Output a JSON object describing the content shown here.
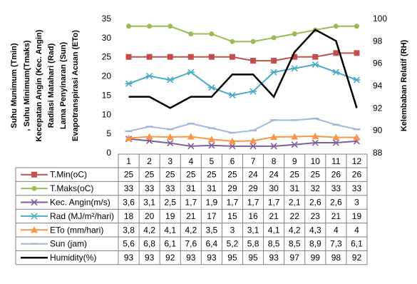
{
  "chart_data": {
    "type": "line",
    "categories": [
      "1",
      "2",
      "3",
      "4",
      "5",
      "6",
      "7",
      "8",
      "9",
      "10",
      "11",
      "12"
    ],
    "y_left": {
      "label_lines": [
        "Suhu Munimum (Tmin)",
        ", Suhu Minimum(Tmaks)",
        "Kecepatan Angin (Kec. Angin)",
        "Radiasi Matahari (Rad)",
        "Lama Penyinaran (Sun)",
        "Evapotranspirasi Acuan (ETo)"
      ],
      "ylim": [
        0,
        35
      ],
      "ticks": [
        0,
        5,
        10,
        15,
        20,
        25,
        30,
        35
      ]
    },
    "y_right": {
      "label": "Kelembaban Relatif (RH)",
      "ylim": [
        88,
        100
      ],
      "ticks": [
        88,
        90,
        92,
        94,
        96,
        98,
        100
      ]
    },
    "series": [
      {
        "name": "T.Min(oC)",
        "color": "#c0504d",
        "marker": "square",
        "axis": "left",
        "values": [
          25,
          25,
          25,
          25,
          25,
          25,
          24,
          24,
          25,
          25,
          26,
          26
        ],
        "labels": [
          "25",
          "25",
          "25",
          "25",
          "25",
          "25",
          "24",
          "24",
          "25",
          "25",
          "26",
          "26"
        ]
      },
      {
        "name": "T.Maks(oC)",
        "color": "#9bbb59",
        "marker": "circle",
        "axis": "left",
        "values": [
          33,
          33,
          33,
          31,
          31,
          29,
          29,
          30,
          31,
          32,
          33,
          33
        ],
        "labels": [
          "33",
          "33",
          "33",
          "31",
          "31",
          "29",
          "29",
          "30",
          "31",
          "32",
          "33",
          "33"
        ]
      },
      {
        "name": "Kec. Angin(m/s)",
        "color": "#7f5f9f",
        "marker": "x",
        "axis": "left",
        "values": [
          3.6,
          3.1,
          2.5,
          1.7,
          1.9,
          1.7,
          1.7,
          1.7,
          2.1,
          2.6,
          2.6,
          3
        ],
        "labels": [
          "3,6",
          "3,1",
          "2,5",
          "1,7",
          "1,9",
          "1,7",
          "1,7",
          "1,7",
          "2,1",
          "2,6",
          "2,6",
          "3"
        ]
      },
      {
        "name": "Rad (MJ/m²/hari)",
        "color": "#4bacc6",
        "marker": "star",
        "axis": "left",
        "values": [
          18,
          20,
          19,
          21,
          17,
          15,
          16,
          21,
          22,
          23,
          21,
          19
        ],
        "labels": [
          "18",
          "20",
          "19",
          "21",
          "17",
          "15",
          "16",
          "21",
          "22",
          "23",
          "21",
          "19"
        ]
      },
      {
        "name": "ETo (mm/hari)",
        "color": "#f79646",
        "marker": "triangle",
        "axis": "left",
        "values": [
          3.8,
          4.2,
          4.1,
          4.2,
          3.5,
          3,
          3.1,
          4.1,
          4.2,
          4.3,
          4,
          4
        ],
        "labels": [
          "3,8",
          "4,2",
          "4,1",
          "4,2",
          "3,5",
          "3",
          "3,1",
          "4,1",
          "4,2",
          "4,3",
          "4",
          "4"
        ]
      },
      {
        "name": "Sun (jam)",
        "color": "#a6b6dc",
        "marker": "dash",
        "axis": "left",
        "values": [
          5.6,
          6.8,
          6.1,
          7.6,
          6.4,
          5.2,
          5.8,
          8.5,
          8.5,
          8.9,
          7.3,
          6.1
        ],
        "labels": [
          "5,6",
          "6,8",
          "6,1",
          "7,6",
          "6,4",
          "5,2",
          "5,8",
          "8,5",
          "8,5",
          "8,9",
          "7,3",
          "6,1"
        ]
      },
      {
        "name": "Humidity(%)",
        "color": "#000000",
        "marker": "none",
        "axis": "right",
        "values": [
          93,
          93,
          92,
          93,
          93,
          95,
          95,
          93,
          97,
          99,
          98,
          92
        ],
        "labels": [
          "93",
          "93",
          "92",
          "93",
          "93",
          "95",
          "95",
          "93",
          "97",
          "99",
          "98",
          "92"
        ]
      }
    ]
  }
}
